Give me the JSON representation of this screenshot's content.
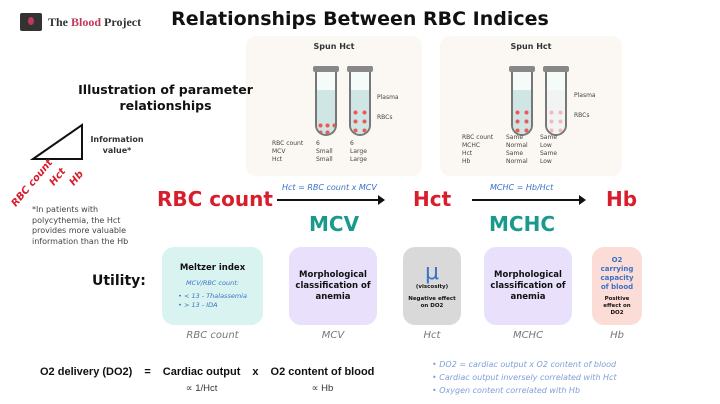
{
  "logo": {
    "text_pre": "The ",
    "text_accent": "Blood",
    "text_post": " Project"
  },
  "title": "Relationships Between RBC Indices",
  "panel1": {
    "heading": "Spun Hct",
    "side_labels": [
      "Plasma",
      "RBCs"
    ],
    "rows": [
      [
        "RBC count",
        "6",
        "6"
      ],
      [
        "MCV",
        "Small",
        "Large"
      ],
      [
        "Hct",
        "Small",
        "Large"
      ]
    ]
  },
  "panel2": {
    "heading": "Spun Hct",
    "side_labels": [
      "Plasma",
      "RBCs"
    ],
    "rows": [
      [
        "RBC count",
        "Same",
        "Same"
      ],
      [
        "MCHC",
        "Normal",
        "Low"
      ],
      [
        "Hct",
        "Same",
        "Same"
      ],
      [
        "Hb",
        "Normal",
        "Low"
      ]
    ]
  },
  "illustration_heading": "Illustration of parameter relationships",
  "info_value": "Information value*",
  "triangle_labels": [
    "RBC count",
    "Hct",
    "Hb"
  ],
  "footnote": "*In patients with polycythemia, the Hct provides more valuable information than the Hb",
  "flow": {
    "rbc": "RBC count",
    "eq1": "Hct = RBC count x MCV",
    "mcv": "MCV",
    "hct": "Hct",
    "eq2": "MCHC = Hb/Hct",
    "mchc": "MCHC",
    "hb": "Hb"
  },
  "utility_label": "Utility:",
  "boxes": [
    {
      "title": "Meltzer index",
      "sub": "MCV/RBC count:",
      "items": [
        "< 13 - Thalassemia",
        "> 13 - IDA"
      ],
      "label": "RBC count",
      "color": "#d9f3f0"
    },
    {
      "title": "Morphological classification of anemia",
      "label": "MCV",
      "color": "#e9e1fb"
    },
    {
      "symbol": "μ",
      "sub": "(viscosity)",
      "note": "Negative effect on DO2",
      "label": "Hct",
      "color": "#d9d9d9"
    },
    {
      "title": "Morphological classification of anemia",
      "label": "MCHC",
      "color": "#e9e1fb"
    },
    {
      "title": "O2 carrying capacity of blood",
      "note": "Positive effect on DO2",
      "label": "Hb",
      "color": "#fbdcd6"
    }
  ],
  "equation": {
    "lhs": "O2 delivery (DO2)",
    "eq": "=",
    "term1": "Cardiac output",
    "times": "x",
    "term2": "O2 content of blood",
    "prop1": "∝  1/Hct",
    "prop2": "∝  Hb"
  },
  "bullets": [
    "DO2 = cardiac output x O2 content of blood",
    "Cardiac output inversely correlated with Hct",
    "Oxygen content correlated with Hb"
  ],
  "colors": {
    "red": "#d81e2c",
    "teal": "#1a9a8c",
    "blue": "#3a72c8"
  }
}
